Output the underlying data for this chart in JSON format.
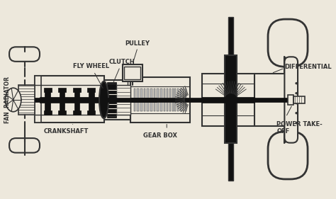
{
  "bg_color": "#ede8dc",
  "line_color": "#333333",
  "dark_fill": "#111111",
  "mid_gray": "#777777",
  "light_gray": "#bbbbbb",
  "labels": {
    "fan_radiator": "FAN  RADIATOR",
    "fly_wheel": "FLY WHEEL",
    "clutch": "CLUTCH",
    "pulley": "PULLEY",
    "crankshaft": "CRANKSHAFT",
    "gear_box": "GEAR BOX",
    "differential": "DIFFERENTIAL",
    "power_takeoff": "POWER TAKE-\nOFF"
  },
  "figsize": [
    4.74,
    2.81
  ],
  "dpi": 100
}
